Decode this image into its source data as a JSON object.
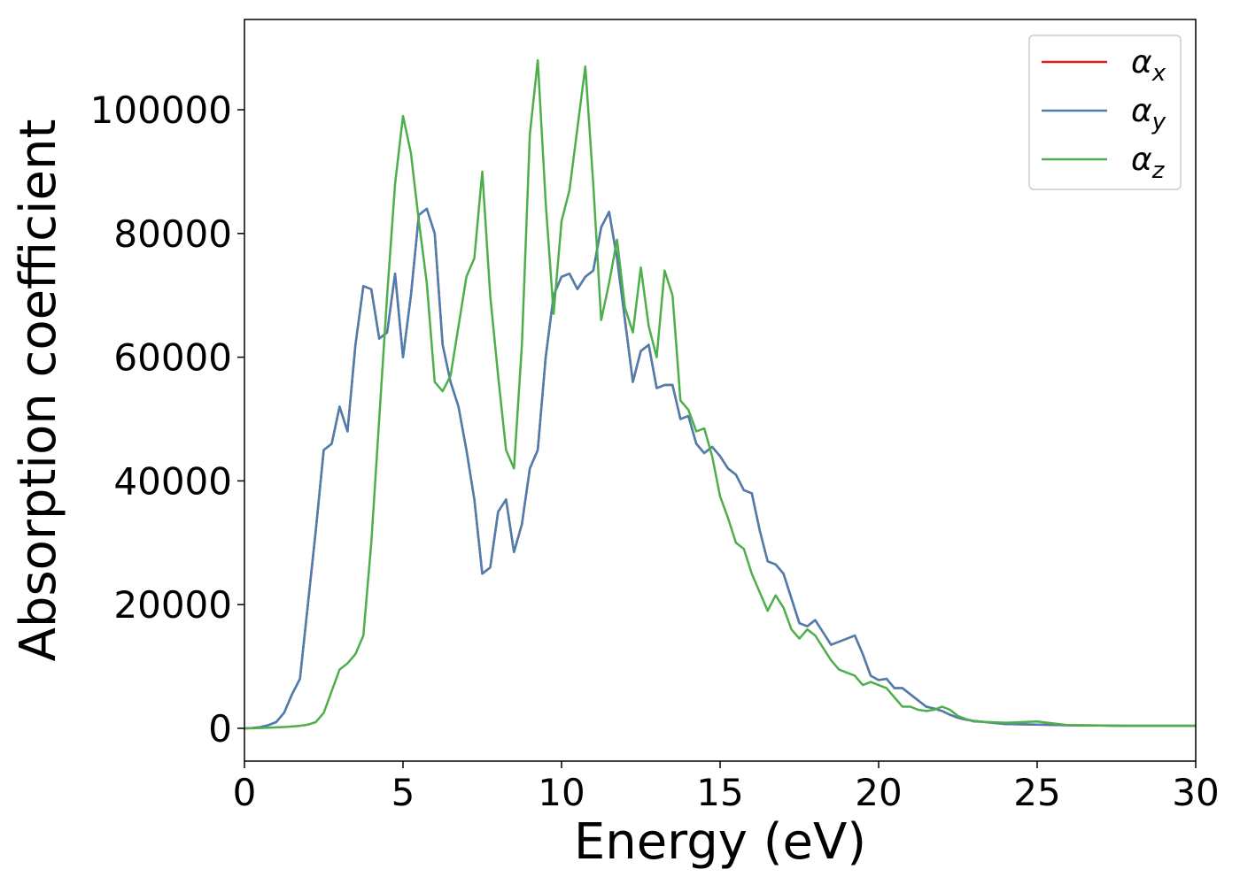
{
  "chart_data": {
    "type": "line",
    "xlabel": "Energy (eV)",
    "ylabel": "Absorption coefficient",
    "xlim": [
      0,
      30
    ],
    "ylim": [
      -5300,
      114600
    ],
    "xticks": [
      0,
      5,
      10,
      15,
      20,
      25,
      30
    ],
    "yticks": [
      0,
      20000,
      40000,
      60000,
      80000,
      100000
    ],
    "legend": "upper right",
    "x": [
      0,
      0.25,
      0.5,
      0.75,
      1,
      1.25,
      1.5,
      1.75,
      2,
      2.25,
      2.5,
      2.75,
      3,
      3.25,
      3.5,
      3.75,
      4,
      4.25,
      4.5,
      4.75,
      5,
      5.25,
      5.5,
      5.75,
      6,
      6.25,
      6.5,
      6.75,
      7,
      7.25,
      7.5,
      7.75,
      8,
      8.25,
      8.5,
      8.75,
      9,
      9.25,
      9.5,
      9.75,
      10,
      10.25,
      10.5,
      10.75,
      11,
      11.25,
      11.5,
      11.75,
      12,
      12.25,
      12.5,
      12.75,
      13,
      13.25,
      13.5,
      13.75,
      14,
      14.25,
      14.5,
      14.75,
      15,
      15.25,
      15.5,
      15.75,
      16,
      16.25,
      16.5,
      16.75,
      17,
      17.25,
      17.5,
      17.75,
      18,
      18.25,
      18.5,
      18.75,
      19,
      19.25,
      19.5,
      19.75,
      20,
      20.25,
      20.5,
      20.75,
      21,
      21.25,
      21.5,
      21.75,
      22,
      22.25,
      22.5,
      22.75,
      23,
      24,
      25,
      26,
      27,
      28,
      29,
      30
    ],
    "series": [
      {
        "name": "αx",
        "color": "#e41a1c",
        "values": [
          0,
          50,
          200,
          500,
          1000,
          2500,
          5500,
          8000,
          20000,
          32000,
          45000,
          46000,
          52000,
          48000,
          62000,
          71500,
          71000,
          63000,
          64000,
          73500,
          60000,
          70000,
          83000,
          84000,
          80000,
          62000,
          56000,
          52000,
          45000,
          37000,
          25000,
          26000,
          35000,
          37000,
          28500,
          33000,
          42000,
          45000,
          60000,
          70000,
          73000,
          73500,
          71000,
          73000,
          74000,
          81000,
          83500,
          76000,
          66000,
          56000,
          61000,
          62000,
          55000,
          55500,
          55500,
          50000,
          50500,
          46000,
          44500,
          45500,
          44000,
          42000,
          41000,
          38500,
          38000,
          32000,
          27000,
          26500,
          25000,
          21000,
          17000,
          16500,
          17500,
          15500,
          13500,
          14000,
          14500,
          15000,
          12000,
          8500,
          7800,
          8000,
          6500,
          6500,
          5500,
          4500,
          3500,
          3200,
          2800,
          2200,
          1700,
          1400,
          1200,
          700,
          600,
          500,
          450,
          400,
          400,
          400
        ]
      },
      {
        "name": "αy",
        "color": "#4a7fb0",
        "values": [
          0,
          50,
          200,
          500,
          1000,
          2500,
          5500,
          8000,
          20000,
          32000,
          45000,
          46000,
          52000,
          48000,
          62000,
          71500,
          71000,
          63000,
          64000,
          73500,
          60000,
          70000,
          83000,
          84000,
          80000,
          62000,
          56000,
          52000,
          45000,
          37000,
          25000,
          26000,
          35000,
          37000,
          28500,
          33000,
          42000,
          45000,
          60000,
          70000,
          73000,
          73500,
          71000,
          73000,
          74000,
          81000,
          83500,
          76000,
          66000,
          56000,
          61000,
          62000,
          55000,
          55500,
          55500,
          50000,
          50500,
          46000,
          44500,
          45500,
          44000,
          42000,
          41000,
          38500,
          38000,
          32000,
          27000,
          26500,
          25000,
          21000,
          17000,
          16500,
          17500,
          15500,
          13500,
          14000,
          14500,
          15000,
          12000,
          8500,
          7800,
          8000,
          6500,
          6500,
          5500,
          4500,
          3500,
          3200,
          2800,
          2200,
          1700,
          1400,
          1200,
          700,
          600,
          500,
          450,
          400,
          400,
          400
        ]
      },
      {
        "name": "αz",
        "color": "#4daf4a",
        "values": [
          0,
          20,
          50,
          100,
          150,
          200,
          300,
          400,
          600,
          1000,
          2500,
          6000,
          9500,
          10500,
          12000,
          15000,
          30000,
          50000,
          70000,
          88000,
          99000,
          93000,
          82000,
          72000,
          56000,
          54500,
          57000,
          65000,
          73000,
          76000,
          90000,
          70000,
          57000,
          45000,
          42000,
          62000,
          96000,
          108000,
          85000,
          67000,
          82000,
          87000,
          97000,
          107000,
          88000,
          66000,
          72000,
          79000,
          68000,
          64000,
          74500,
          65000,
          60000,
          74000,
          70000,
          53000,
          51500,
          48000,
          48500,
          44000,
          37500,
          34000,
          30000,
          29000,
          25000,
          22000,
          19000,
          21500,
          19500,
          16000,
          14500,
          16000,
          15000,
          13000,
          11000,
          9500,
          9000,
          8500,
          7000,
          7500,
          7000,
          6500,
          5000,
          3500,
          3500,
          3000,
          2800,
          3000,
          3500,
          3000,
          2000,
          1500,
          1100,
          900,
          1100,
          500,
          450,
          400,
          400,
          400
        ]
      }
    ]
  }
}
